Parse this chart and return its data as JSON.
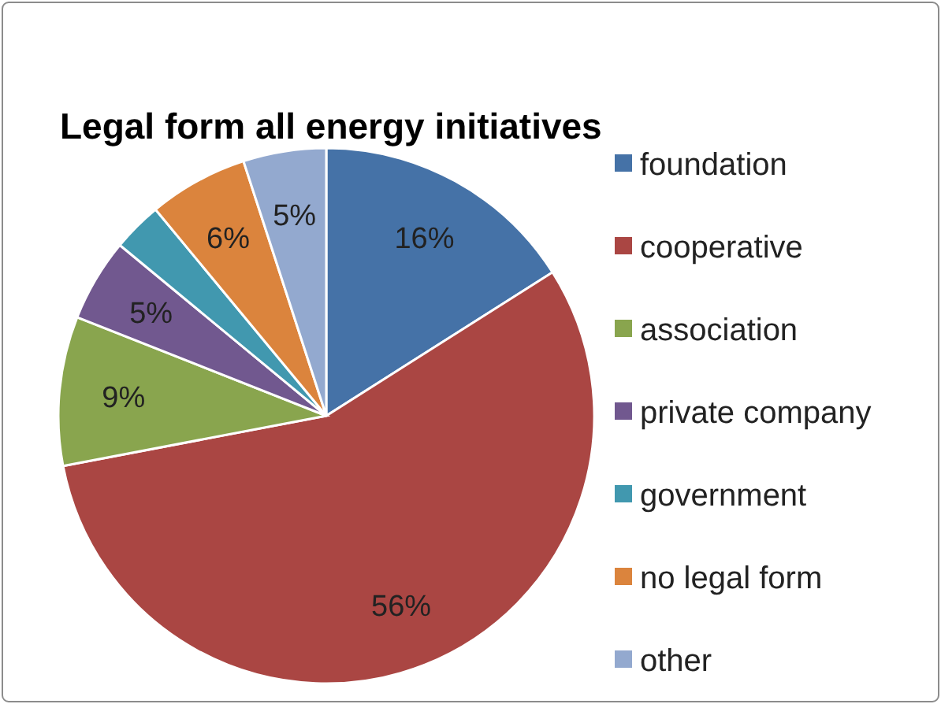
{
  "chart_data": {
    "type": "pie",
    "title": "Legal form all energy initiatives",
    "categories": [
      "foundation",
      "cooperative",
      "association",
      "private company",
      "government",
      "no legal form",
      "other"
    ],
    "values": [
      16,
      56,
      9,
      5,
      3,
      6,
      5
    ],
    "colors": [
      "#4572a7",
      "#aa4643",
      "#89a54e",
      "#71588f",
      "#4198af",
      "#db843d",
      "#93a9cf"
    ],
    "value_labels": [
      "16%",
      "56%",
      "9%",
      "5%",
      null,
      "6%",
      "5%"
    ],
    "legend": "right"
  }
}
